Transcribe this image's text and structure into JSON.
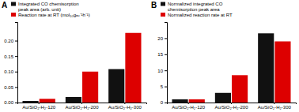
{
  "chart_data": [
    {
      "type": "bar",
      "title": "A",
      "categories": [
        "Au/SiO₂-H₂-120",
        "Au/SiO₂-H₂-200",
        "Au/SiO₂-H₂-300"
      ],
      "series": [
        {
          "name": "Integrated CO chemisorption\npeak area (arb. unit)",
          "color": "#111111",
          "values": [
            0.005,
            0.018,
            0.108
          ]
        },
        {
          "name": "Reaction rate at RT (mol₁₀gₐᵤ⁻¹h⁻¹)",
          "color": "#dd0000",
          "values": [
            0.012,
            0.1,
            0.225
          ]
        }
      ],
      "ylim": [
        0,
        0.26
      ],
      "yticks": [
        {
          "value": 0,
          "label": "0.00"
        },
        0.05,
        {
          "value": 0.1,
          "label": "0.10"
        },
        0.15,
        {
          "value": 0.2,
          "label": "0.20"
        }
      ],
      "legend": "upper left"
    },
    {
      "type": "bar",
      "title": "B",
      "categories": [
        "Au/SiO₂-H₂-120",
        "Au/SiO₂-H₂-200",
        "Au/SiO₂-H₂-300"
      ],
      "series": [
        {
          "name": "Normalized integrated CO\nchemisorption peak area",
          "color": "#111111",
          "values": [
            1.0,
            3.0,
            21.5
          ]
        },
        {
          "name": "Normalized reaction rate at RT",
          "color": "#dd0000",
          "values": [
            1.0,
            8.5,
            19.0
          ]
        }
      ],
      "ylim": [
        0,
        25
      ],
      "yticks": [
        0,
        5,
        10,
        15,
        20
      ],
      "legend": "upper left"
    }
  ]
}
